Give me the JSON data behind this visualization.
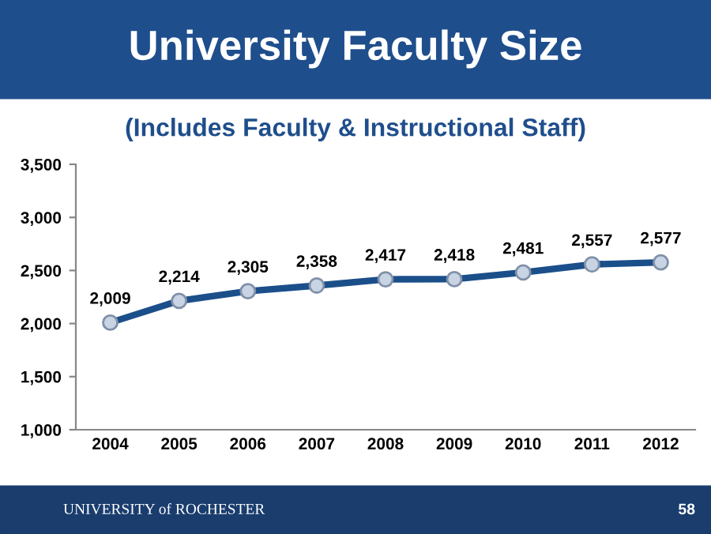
{
  "chart_data": {
    "type": "line",
    "title": "University Faculty Size",
    "subtitle": "(Includes Faculty & Instructional Staff)",
    "categories": [
      "2004",
      "2005",
      "2006",
      "2007",
      "2008",
      "2009",
      "2010",
      "2011",
      "2012"
    ],
    "series": [
      {
        "color": "#1b4f8a",
        "values": [
          2009,
          2214,
          2305,
          2358,
          2417,
          2418,
          2481,
          2557,
          2577
        ],
        "value_labels": [
          "2,009",
          "2,214",
          "2,305",
          "2,358",
          "2,417",
          "2,418",
          "2,481",
          "2,557",
          "2,577"
        ]
      }
    ],
    "ylim": [
      1000,
      3500
    ],
    "yticks": [
      {
        "value": 1000,
        "label": "1,000"
      },
      {
        "value": 1500,
        "label": "1,500"
      },
      {
        "value": 2000,
        "label": "2,000"
      },
      {
        "value": 2500,
        "label": "2,500"
      },
      {
        "value": 3000,
        "label": "3,000"
      },
      {
        "value": 3500,
        "label": "3,500"
      }
    ],
    "marker": "circle",
    "line_style": "solid",
    "grid": false,
    "annotations": [
      "UNIVERSITY of ROCHESTER",
      "58"
    ]
  }
}
